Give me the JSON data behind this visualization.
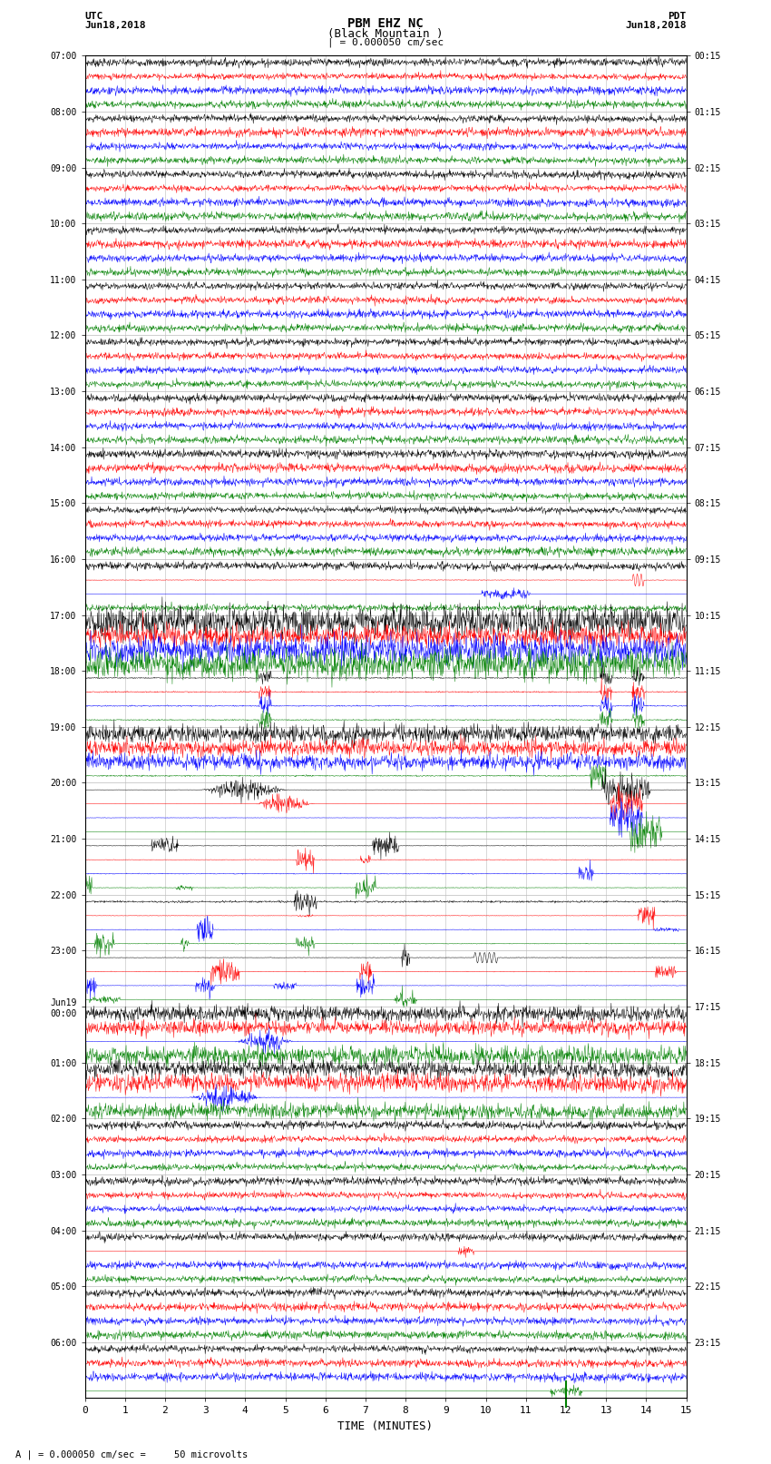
{
  "title_line1": "PBM EHZ NC",
  "title_line2": "(Black Mountain )",
  "scale_label": "| = 0.000050 cm/sec",
  "left_label_top": "UTC",
  "left_label_date": "Jun18,2018",
  "right_label_top": "PDT",
  "right_label_date": "Jun18,2018",
  "xlabel": "TIME (MINUTES)",
  "footer": "A | = 0.000050 cm/sec =     50 microvolts",
  "utc_times": [
    "07:00",
    "08:00",
    "09:00",
    "10:00",
    "11:00",
    "12:00",
    "13:00",
    "14:00",
    "15:00",
    "16:00",
    "17:00",
    "18:00",
    "19:00",
    "20:00",
    "21:00",
    "22:00",
    "23:00",
    "Jun19\n00:00",
    "01:00",
    "02:00",
    "03:00",
    "04:00",
    "05:00",
    "06:00"
  ],
  "pdt_times": [
    "00:15",
    "01:15",
    "02:15",
    "03:15",
    "04:15",
    "05:15",
    "06:15",
    "07:15",
    "08:15",
    "09:15",
    "10:15",
    "11:15",
    "12:15",
    "13:15",
    "14:15",
    "15:15",
    "16:15",
    "17:15",
    "18:15",
    "19:15",
    "20:15",
    "21:15",
    "22:15",
    "23:15"
  ],
  "n_rows": 24,
  "n_cols": 4,
  "minutes": 15,
  "colors": [
    "black",
    "red",
    "blue",
    "green"
  ],
  "bg_color": "white",
  "grid_color": "#bbbbbb",
  "figsize": [
    8.5,
    16.13
  ],
  "dpi": 100,
  "noise_base": 0.08,
  "samples_per_min": 100
}
